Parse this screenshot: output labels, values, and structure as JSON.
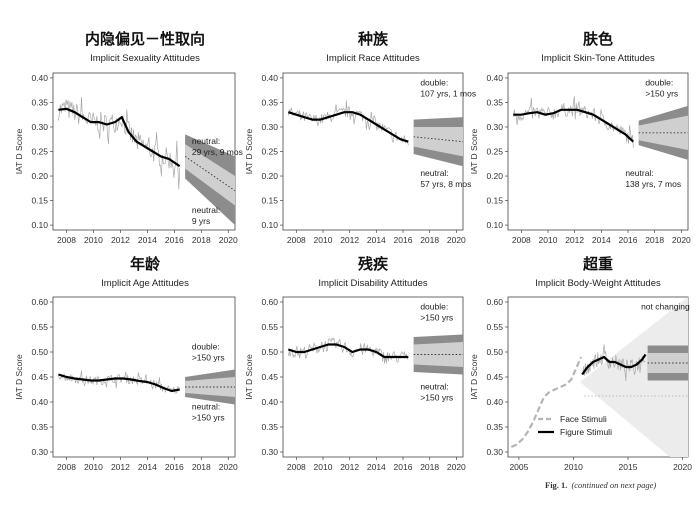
{
  "footer": {
    "fig_label": "Fig. 1.",
    "continued": "(continued on next page)"
  },
  "chart_data": [
    {
      "type": "line",
      "title_zh": "内隐偏见－性取向",
      "title": "Implicit Sexuality Attitudes",
      "ylabel": "IAT D Score",
      "xlim": [
        2007,
        2020.5
      ],
      "ylim": [
        0.09,
        0.41
      ],
      "yticks": [
        0.1,
        0.15,
        0.2,
        0.25,
        0.3,
        0.35,
        0.4
      ],
      "xticks": [
        2008,
        2010,
        2012,
        2014,
        2016,
        2018,
        2020
      ],
      "observed": {
        "x": [
          2007.4,
          2008,
          2008.6,
          2009.2,
          2009.8,
          2010.4,
          2011.0,
          2011.6,
          2012.1,
          2012.6,
          2013.2,
          2013.8,
          2014.4,
          2015.0,
          2015.6,
          2016.4
        ],
        "y": [
          0.335,
          0.337,
          0.33,
          0.32,
          0.31,
          0.31,
          0.305,
          0.31,
          0.32,
          0.29,
          0.27,
          0.26,
          0.25,
          0.24,
          0.235,
          0.22
        ]
      },
      "noise": 0.022,
      "forecast": {
        "x0": 2016.8,
        "x1": 2020.5,
        "y0": 0.24,
        "y1": 0.17,
        "inner0": 0.025,
        "inner1": 0.03,
        "outer0": 0.045,
        "outer1": 0.07
      },
      "annotations": [
        {
          "lines": [
            "neutral:",
            "29 yrs, 9 mos"
          ],
          "x": 2017.3,
          "y": 0.265
        },
        {
          "lines": [
            "neutral:",
            "9 yrs"
          ],
          "x": 2017.3,
          "y": 0.125
        }
      ]
    },
    {
      "type": "line",
      "title_zh": "种族",
      "title": "Implicit Race Attitudes",
      "ylabel": "IAT D Score",
      "xlim": [
        2007,
        2020.5
      ],
      "ylim": [
        0.09,
        0.41
      ],
      "yticks": [
        0.1,
        0.15,
        0.2,
        0.25,
        0.3,
        0.35,
        0.4
      ],
      "xticks": [
        2008,
        2010,
        2012,
        2014,
        2016,
        2018,
        2020
      ],
      "observed": {
        "x": [
          2007.4,
          2008,
          2008.6,
          2009.2,
          2009.8,
          2010.4,
          2011.0,
          2011.6,
          2012.2,
          2012.8,
          2013.4,
          2014.0,
          2014.6,
          2015.2,
          2015.8,
          2016.4
        ],
        "y": [
          0.33,
          0.325,
          0.32,
          0.315,
          0.315,
          0.32,
          0.325,
          0.33,
          0.33,
          0.325,
          0.315,
          0.305,
          0.295,
          0.285,
          0.275,
          0.27
        ]
      },
      "noise": 0.012,
      "forecast": {
        "x0": 2016.8,
        "x1": 2020.5,
        "y0": 0.28,
        "y1": 0.27,
        "inner0": 0.02,
        "inner1": 0.03,
        "outer0": 0.035,
        "outer1": 0.05
      },
      "annotations": [
        {
          "lines": [
            "double:",
            "107 yrs, 1 mos"
          ],
          "x": 2017.3,
          "y": 0.385
        },
        {
          "lines": [
            "neutral:",
            "57 yrs, 8 mos"
          ],
          "x": 2017.3,
          "y": 0.2
        }
      ]
    },
    {
      "type": "line",
      "title_zh": "肤色",
      "title": "Implicit Skin-Tone Attitudes",
      "ylabel": "IAT D Score",
      "xlim": [
        2007,
        2020.5
      ],
      "ylim": [
        0.09,
        0.41
      ],
      "yticks": [
        0.1,
        0.15,
        0.2,
        0.25,
        0.3,
        0.35,
        0.4
      ],
      "xticks": [
        2008,
        2010,
        2012,
        2014,
        2016,
        2018,
        2020
      ],
      "observed": {
        "x": [
          2007.4,
          2008,
          2008.6,
          2009.2,
          2009.8,
          2010.4,
          2011.0,
          2011.6,
          2012.2,
          2012.8,
          2013.4,
          2014.0,
          2014.6,
          2015.2,
          2015.8,
          2016.4
        ],
        "y": [
          0.325,
          0.325,
          0.328,
          0.33,
          0.325,
          0.328,
          0.335,
          0.335,
          0.335,
          0.33,
          0.325,
          0.315,
          0.305,
          0.295,
          0.285,
          0.27
        ]
      },
      "noise": 0.014,
      "forecast": {
        "x0": 2016.8,
        "x1": 2020.5,
        "y0": 0.288,
        "y1": 0.288,
        "inner0": 0.015,
        "inner1": 0.035,
        "outer0": 0.025,
        "outer1": 0.055
      },
      "annotations": [
        {
          "lines": [
            "double:",
            ">150 yrs"
          ],
          "x": 2017.3,
          "y": 0.385
        },
        {
          "lines": [
            "neutral:",
            "138 yrs, 7 mos"
          ],
          "x": 2015.8,
          "y": 0.2
        }
      ]
    },
    {
      "type": "line",
      "title_zh": "年龄",
      "title": "Implicit Age Attitudes",
      "ylabel": "IAT D Score",
      "xlim": [
        2007,
        2020.5
      ],
      "ylim": [
        0.29,
        0.61
      ],
      "yticks": [
        0.3,
        0.35,
        0.4,
        0.45,
        0.5,
        0.55,
        0.6
      ],
      "xticks": [
        2008,
        2010,
        2012,
        2014,
        2016,
        2018,
        2020
      ],
      "observed": {
        "x": [
          2007.4,
          2008,
          2008.6,
          2009.2,
          2009.8,
          2010.4,
          2011.0,
          2011.6,
          2012.2,
          2012.8,
          2013.4,
          2014.0,
          2014.6,
          2015.2,
          2015.8,
          2016.4
        ],
        "y": [
          0.455,
          0.45,
          0.447,
          0.445,
          0.443,
          0.443,
          0.445,
          0.447,
          0.447,
          0.445,
          0.442,
          0.44,
          0.435,
          0.428,
          0.422,
          0.425
        ]
      },
      "noise": 0.009,
      "forecast": {
        "x0": 2016.8,
        "x1": 2020.5,
        "y0": 0.43,
        "y1": 0.43,
        "inner0": 0.012,
        "inner1": 0.02,
        "outer0": 0.02,
        "outer1": 0.035
      },
      "annotations": [
        {
          "lines": [
            "double:",
            ">150 yrs"
          ],
          "x": 2017.3,
          "y": 0.505
        },
        {
          "lines": [
            "neutral:",
            ">150 yrs"
          ],
          "x": 2017.3,
          "y": 0.385
        }
      ]
    },
    {
      "type": "line",
      "title_zh": "残疾",
      "title": "Implicit Disability Attitudes",
      "ylabel": "IAT D Score",
      "xlim": [
        2007,
        2020.5
      ],
      "ylim": [
        0.29,
        0.61
      ],
      "yticks": [
        0.3,
        0.35,
        0.4,
        0.45,
        0.5,
        0.55,
        0.6
      ],
      "xticks": [
        2008,
        2010,
        2012,
        2014,
        2016,
        2018,
        2020
      ],
      "observed": {
        "x": [
          2007.4,
          2008,
          2008.6,
          2009.2,
          2009.8,
          2010.4,
          2011.0,
          2011.6,
          2012.2,
          2012.8,
          2013.4,
          2014.0,
          2014.6,
          2015.2,
          2015.8,
          2016.4
        ],
        "y": [
          0.505,
          0.5,
          0.5,
          0.505,
          0.51,
          0.515,
          0.515,
          0.51,
          0.5,
          0.505,
          0.505,
          0.5,
          0.49,
          0.49,
          0.49,
          0.49
        ]
      },
      "noise": 0.013,
      "forecast": {
        "x0": 2016.8,
        "x1": 2020.5,
        "y0": 0.495,
        "y1": 0.495,
        "inner0": 0.02,
        "inner1": 0.025,
        "outer0": 0.035,
        "outer1": 0.04
      },
      "annotations": [
        {
          "lines": [
            "double:",
            ">150 yrs"
          ],
          "x": 2017.3,
          "y": 0.585
        },
        {
          "lines": [
            "neutral:",
            ">150 yrs"
          ],
          "x": 2017.3,
          "y": 0.425
        }
      ]
    },
    {
      "type": "line",
      "title_zh": "超重",
      "title": "Implicit Body-Weight Attitudes",
      "ylabel": "IAT D Score",
      "xlim": [
        2004,
        2020.5
      ],
      "ylim": [
        0.29,
        0.61
      ],
      "yticks": [
        0.3,
        0.35,
        0.4,
        0.45,
        0.5,
        0.55,
        0.6
      ],
      "xticks": [
        2005,
        2010,
        2015,
        2020
      ],
      "face": {
        "x": [
          2004.3,
          2004.8,
          2005.3,
          2005.8,
          2006.3,
          2006.8,
          2007.3,
          2007.8,
          2008.3,
          2008.8,
          2009.3,
          2009.8,
          2010.3,
          2010.7
        ],
        "y": [
          0.31,
          0.315,
          0.325,
          0.34,
          0.36,
          0.385,
          0.41,
          0.42,
          0.425,
          0.43,
          0.435,
          0.445,
          0.47,
          0.49
        ]
      },
      "observed": {
        "x": [
          2010.8,
          2011.3,
          2011.8,
          2012.3,
          2012.8,
          2013.3,
          2013.8,
          2014.3,
          2014.8,
          2015.3,
          2015.8,
          2016.3,
          2016.6
        ],
        "y": [
          0.455,
          0.47,
          0.48,
          0.485,
          0.49,
          0.48,
          0.48,
          0.475,
          0.47,
          0.47,
          0.475,
          0.485,
          0.495
        ]
      },
      "noise": 0.015,
      "forecast": {
        "x0": 2016.8,
        "x1": 2020.5,
        "y0": 0.478,
        "y1": 0.478,
        "inner0": 0.02,
        "inner1": 0.02,
        "outer0": 0.035,
        "outer1": 0.035
      },
      "annotations": [
        {
          "lines": [
            "not changing"
          ],
          "x": 2016.2,
          "y": 0.585
        }
      ],
      "legend": [
        {
          "label": "Face Stimuli",
          "style": "dashed-gray"
        },
        {
          "label": "Figure Stimuli",
          "style": "solid-black"
        }
      ]
    }
  ]
}
